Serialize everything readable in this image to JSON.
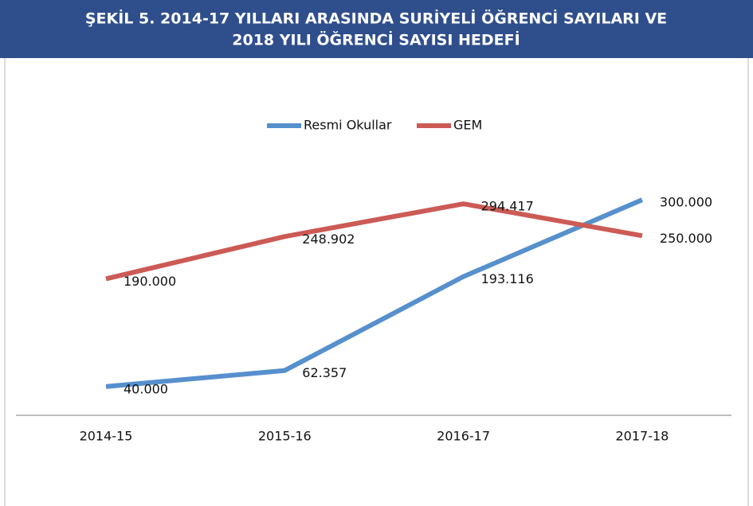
{
  "chart_data": {
    "type": "line",
    "title": [
      "ŞEKİL 5. 2014-17 YILLARI ARASINDA SURİYELİ ÖĞRENCİ SAYILARI VE",
      "2018 YILI ÖĞRENCİ SAYISI HEDEFİ"
    ],
    "categories": [
      "2014-15",
      "2015-16",
      "2016-17",
      "2017-18"
    ],
    "series": [
      {
        "name": "Resmi Okullar",
        "color": "#5690cd",
        "values": [
          40000,
          62357,
          193116,
          300000
        ],
        "value_labels": [
          "40.000",
          "62.357",
          "193.116",
          "300.000"
        ]
      },
      {
        "name": "GEM",
        "color": "#cc5a55",
        "values": [
          190000,
          248902,
          294417,
          250000
        ],
        "value_labels": [
          "190.000",
          "248.902",
          "294.417",
          "250.000"
        ]
      }
    ],
    "ylim": [
      0,
      350000
    ],
    "legend": "top"
  }
}
